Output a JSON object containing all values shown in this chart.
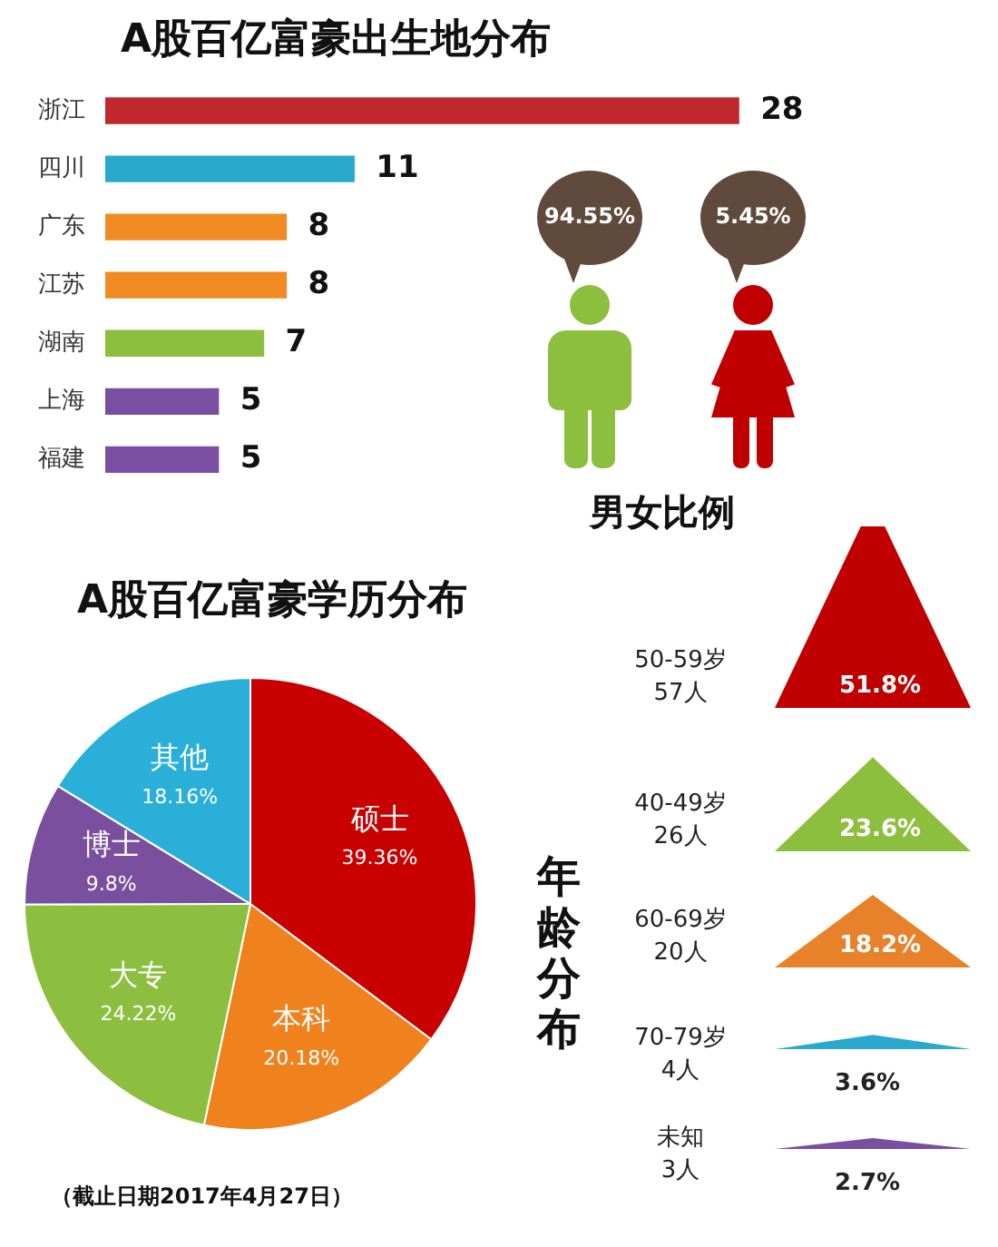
{
  "chart_data": [
    {
      "type": "bar",
      "orientation": "horizontal",
      "title": "A股百亿富豪出生地分布",
      "categories": [
        "浙江",
        "四川",
        "广东",
        "江苏",
        "湖南",
        "上海",
        "福建"
      ],
      "values": [
        28,
        11,
        8,
        8,
        7,
        5,
        5
      ],
      "colors": [
        "#c0282e",
        "#2aa9cf",
        "#f28a22",
        "#f28a22",
        "#8dbf3f",
        "#7a4ea0",
        "#7a4ea0"
      ],
      "data_labels": true,
      "tick_labels": "y",
      "legend": false
    },
    {
      "type": "other",
      "title": "男女比例",
      "values": [
        94.55,
        5.45
      ],
      "value_labels": [
        "94.55%",
        "5.45%"
      ],
      "colors": [
        "#8dbf3f",
        "#c00000"
      ]
    },
    {
      "type": "pie",
      "title": "A股百亿富豪学历分布",
      "categories": [
        "硕士",
        "本科",
        "大专",
        "博士",
        "其他"
      ],
      "values": [
        39.36,
        20.18,
        24.22,
        9.8,
        18.16
      ],
      "value_labels": [
        "39.36%",
        "20.18%",
        "24.22%",
        "9.8%",
        "18.16%"
      ],
      "colors": [
        "#c80000",
        "#f0821e",
        "#8cbf3f",
        "#7a4f9e",
        "#2ab0d8"
      ],
      "legend": false,
      "annotations": [
        "（截止日期2017年4月27日）"
      ]
    },
    {
      "type": "other",
      "title": "年龄分布",
      "categories": [
        "50-59岁",
        "40-49岁",
        "60-69岁",
        "70-79岁",
        "未知"
      ],
      "series": [
        {
          "values": [
            57,
            26,
            20,
            4,
            3
          ],
          "value_labels": [
            "57人",
            "26人",
            "20人",
            "4人",
            "3人"
          ]
        },
        {
          "values": [
            51.8,
            23.6,
            18.2,
            3.6,
            2.7
          ],
          "value_labels": [
            "51.8%",
            "23.6%",
            "18.2%",
            "3.6%",
            "2.7%"
          ],
          "colors": [
            "#c00000",
            "#8dbf3f",
            "#e8822a",
            "#2aa9cf",
            "#7a4ea0"
          ]
        }
      ]
    }
  ]
}
